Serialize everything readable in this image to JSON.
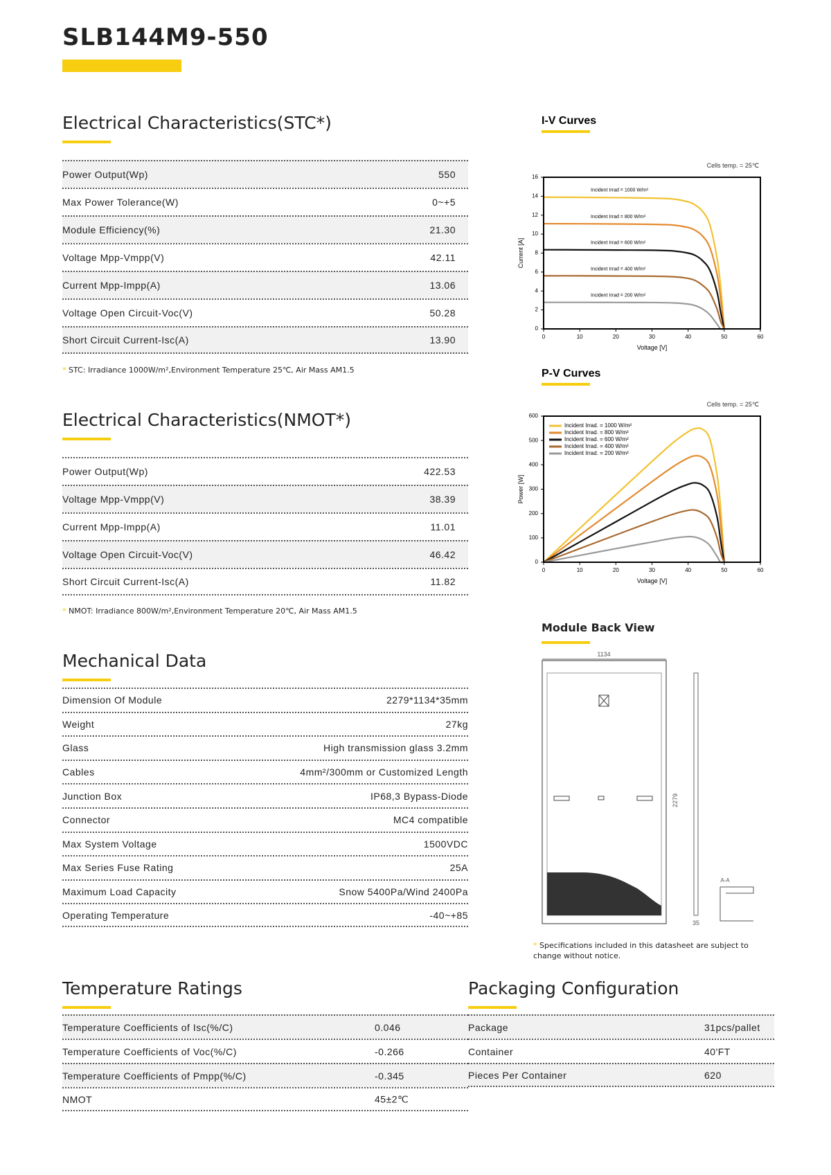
{
  "header": {
    "title": "SLB144M9-550"
  },
  "sections": [
    {
      "title": "Electrical Characteristics(STC*)",
      "rows": [
        [
          "Power Output(Wp)",
          "550"
        ],
        [
          "Max Power Tolerance(W)",
          "0~+5"
        ],
        [
          "Module Efficiency(%)",
          "21.30"
        ],
        [
          "Voltage Mpp-Vmpp(V)",
          "42.11"
        ],
        [
          "Current Mpp-Impp(A)",
          "13.06"
        ],
        [
          "Voltage Open Circuit-Voc(V)",
          "50.28"
        ],
        [
          "Short Circuit Current-Isc(A)",
          "13.90"
        ]
      ],
      "note": "STC: Irradiance 1000W/m²,Environment Temperature 25℃, Air Mass AM1.5"
    },
    {
      "title": "Electrical Characteristics(NMOT*)",
      "rows": [
        [
          "Power Output(Wp)",
          "422.53"
        ],
        [
          "Voltage Mpp-Vmpp(V)",
          "38.39"
        ],
        [
          "Current Mpp-Impp(A)",
          "11.01"
        ],
        [
          "Voltage Open Circuit-Voc(V)",
          "46.42"
        ],
        [
          "Short Circuit Current-Isc(A)",
          "11.82"
        ]
      ],
      "note": "NMOT: Irradiance 800W/m²,Environment Temperature 20℃, Air Mass AM1.5"
    },
    {
      "title": "Mechanical Data",
      "rows": [
        [
          "Dimension Of Module",
          "2279*1134*35mm"
        ],
        [
          "Weight",
          "27kg"
        ],
        [
          "Glass",
          "High transmission glass 3.2mm"
        ],
        [
          "Cables",
          "4mm²/300mm or Customized Length"
        ],
        [
          "Junction Box",
          "IP68,3 Bypass-Diode"
        ],
        [
          "Connector",
          "MC4 compatible"
        ],
        [
          "Max System Voltage",
          "1500VDC"
        ],
        [
          "Max Series Fuse Rating",
          "25A"
        ],
        [
          "Maximum Load Capacity",
          "Snow 5400Pa/Wind 2400Pa"
        ],
        [
          "Operating Temperature",
          "-40~+85"
        ]
      ]
    },
    {
      "title": "Temperature Ratings",
      "rows": [
        [
          "Temperature Coefficients of Isc(%/C)",
          "0.046"
        ],
        [
          "Temperature Coefficients of Voc(%/C)",
          "-0.266"
        ],
        [
          "Temperature Coefficients of Pmpp(%/C)",
          "-0.345"
        ],
        [
          "NMOT",
          "45±2℃"
        ]
      ]
    },
    {
      "title": "Packaging Configuration",
      "rows": [
        [
          "Package",
          "31pcs/pallet"
        ],
        [
          "Container",
          "40'FT"
        ],
        [
          "Pieces Per Container",
          "620"
        ]
      ]
    }
  ],
  "charts": [
    {
      "type": "line",
      "title": "I-V Curves",
      "annotation": "Cells temp. = 25℃",
      "xlabel": "Voltage [V]",
      "ylabel": "Current [A]",
      "x": [
        0,
        10,
        20,
        30,
        36,
        40,
        42,
        44,
        46,
        48,
        49,
        50
      ],
      "xlim": [
        0,
        60
      ],
      "xticks": [
        0,
        10,
        20,
        30,
        40,
        50,
        60
      ],
      "ylim": [
        0,
        16
      ],
      "yticks": [
        0,
        2,
        4,
        6,
        8,
        10,
        12,
        14,
        16
      ],
      "series": [
        {
          "name": "Incident Irrad = 1000 W/m²",
          "color": "#f2c230",
          "values": [
            13.9,
            13.88,
            13.85,
            13.8,
            13.7,
            13.4,
            13.06,
            12.4,
            11.0,
            7.5,
            4.5,
            0
          ]
        },
        {
          "name": "Incident Irrad = 800 W/m²",
          "color": "#e38a2e",
          "values": [
            11.1,
            11.09,
            11.07,
            11.03,
            10.95,
            10.7,
            10.4,
            9.8,
            8.6,
            5.8,
            3.2,
            0
          ]
        },
        {
          "name": "Incident Irrad = 600 W/m²",
          "color": "#111111",
          "values": [
            8.35,
            8.34,
            8.32,
            8.3,
            8.22,
            8.0,
            7.75,
            7.2,
            6.2,
            3.9,
            1.8,
            0
          ]
        },
        {
          "name": "Incident Irrad = 400 W/m²",
          "color": "#a8692e",
          "values": [
            5.6,
            5.6,
            5.58,
            5.56,
            5.5,
            5.33,
            5.1,
            4.6,
            3.8,
            2.1,
            0.8,
            0
          ]
        },
        {
          "name": "Incident Irrad = 200 W/m²",
          "color": "#9a9a9a",
          "values": [
            2.8,
            2.8,
            2.79,
            2.78,
            2.74,
            2.62,
            2.45,
            2.1,
            1.5,
            0.5,
            0,
            0
          ]
        }
      ]
    },
    {
      "type": "line",
      "title": "P-V Curves",
      "annotation": "Cells temp. = 25℃",
      "xlabel": "Voltage [V]",
      "ylabel": "Power [W]",
      "legend": "upper left",
      "x": [
        0,
        10,
        20,
        30,
        36,
        40,
        42,
        44,
        46,
        48,
        49,
        50
      ],
      "xlim": [
        0,
        60
      ],
      "xticks": [
        0,
        10,
        20,
        30,
        40,
        50,
        60
      ],
      "ylim": [
        0,
        600
      ],
      "yticks": [
        0,
        100,
        200,
        300,
        400,
        500,
        600
      ],
      "series": [
        {
          "name": "Incident Irrad. = 1000 W/m²",
          "color": "#f2c230",
          "values": [
            0,
            139,
            277,
            414,
            493,
            536,
            549,
            546,
            506,
            360,
            221,
            0
          ]
        },
        {
          "name": "Incident Irrad. = 800 W/m²",
          "color": "#e38a2e",
          "values": [
            0,
            111,
            221,
            331,
            394,
            428,
            437,
            431,
            396,
            278,
            157,
            0
          ]
        },
        {
          "name": "Incident Irrad. = 600 W/m²",
          "color": "#111111",
          "values": [
            0,
            83,
            166,
            249,
            296,
            320,
            326,
            317,
            285,
            187,
            88,
            0
          ]
        },
        {
          "name": "Incident Irrad. = 400 W/m²",
          "color": "#a8692e",
          "values": [
            0,
            56,
            112,
            167,
            198,
            213,
            214,
            202,
            175,
            101,
            39,
            0
          ]
        },
        {
          "name": "Incident Irrad. = 200 W/m²",
          "color": "#9a9a9a",
          "values": [
            0,
            28,
            56,
            83,
            99,
            105,
            103,
            92,
            69,
            24,
            0,
            0
          ]
        }
      ]
    }
  ],
  "back_view": {
    "title": "Module Back View",
    "width_label": "1134",
    "height_label": "2279",
    "depth_label": "35",
    "section_label": "A-A",
    "note": "Specifications included in this datasheet are subject to change without notice."
  }
}
